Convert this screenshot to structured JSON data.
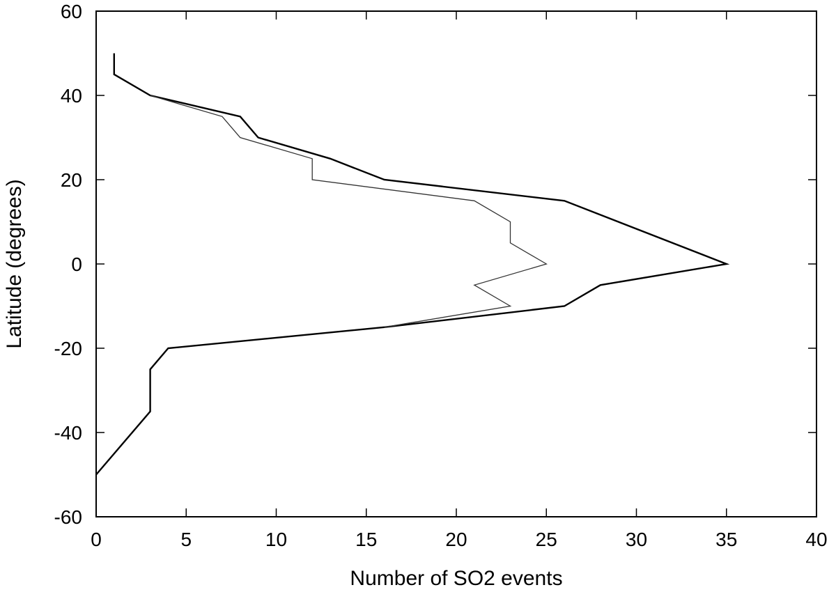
{
  "chart_data": {
    "type": "line",
    "xlabel": "Number of SO2 events",
    "ylabel": "Latitude (degrees)",
    "xlim": [
      0,
      40
    ],
    "ylim": [
      -60,
      60
    ],
    "xticks": [
      "0",
      "5",
      "10",
      "15",
      "20",
      "25",
      "30",
      "35",
      "40"
    ],
    "yticks": [
      "60",
      "40",
      "20",
      "0",
      "-20",
      "-40",
      "-60"
    ],
    "xtick_values": [
      0,
      5,
      10,
      15,
      20,
      25,
      30,
      35,
      40
    ],
    "ytick_values": [
      60,
      40,
      20,
      0,
      -20,
      -40,
      -60
    ],
    "grid": false,
    "series": [
      {
        "color": "#000000",
        "points": [
          [
            1,
            50
          ],
          [
            1,
            45
          ],
          [
            3,
            40
          ],
          [
            8,
            35
          ],
          [
            9,
            30
          ],
          [
            13,
            25
          ],
          [
            16,
            20
          ],
          [
            26,
            15
          ],
          [
            35,
            0
          ],
          [
            28,
            -5
          ],
          [
            26,
            -10
          ],
          [
            16,
            -15
          ],
          [
            4,
            -20
          ],
          [
            3,
            -25
          ],
          [
            3,
            -35
          ],
          [
            0,
            -50
          ]
        ]
      },
      {
        "color": "#333333",
        "points": [
          [
            3,
            40
          ],
          [
            7,
            35
          ],
          [
            8,
            30
          ],
          [
            12,
            25
          ],
          [
            12,
            20
          ],
          [
            21,
            15
          ],
          [
            23,
            10
          ],
          [
            23,
            5
          ],
          [
            25,
            0
          ],
          [
            21,
            -5
          ],
          [
            23,
            -10
          ],
          [
            16,
            -15
          ]
        ]
      }
    ]
  }
}
